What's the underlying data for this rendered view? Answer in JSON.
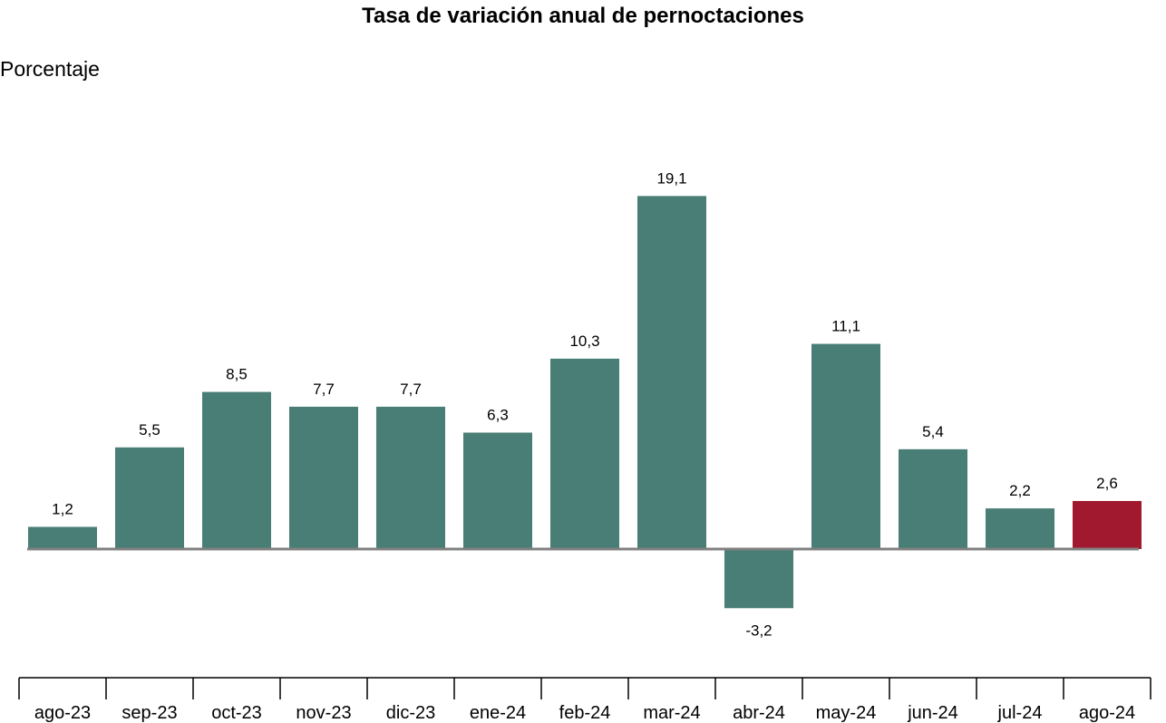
{
  "chart_data": {
    "type": "bar",
    "title": "Tasa de variación anual de pernoctaciones",
    "ylabel": "Porcentaje",
    "xlabel": "",
    "categories": [
      "ago-23",
      "sep-23",
      "oct-23",
      "nov-23",
      "dic-23",
      "ene-24",
      "feb-24",
      "mar-24",
      "abr-24",
      "may-24",
      "jun-24",
      "jul-24",
      "ago-24"
    ],
    "values": [
      1.2,
      5.5,
      8.5,
      7.7,
      7.7,
      6.3,
      10.3,
      19.1,
      -3.2,
      11.1,
      5.4,
      2.2,
      2.6
    ],
    "value_labels": [
      "1,2",
      "5,5",
      "8,5",
      "7,7",
      "7,7",
      "6,3",
      "10,3",
      "19,1",
      "-3,2",
      "11,1",
      "5,4",
      "2,2",
      "2,6"
    ],
    "ylim": [
      -6,
      22
    ],
    "grid": false,
    "legend": "none",
    "colors": {
      "bar": "#487e76",
      "highlight": "#a0192f",
      "zero_line": "#808080",
      "axis": "#000000"
    },
    "highlight_index": 12
  }
}
